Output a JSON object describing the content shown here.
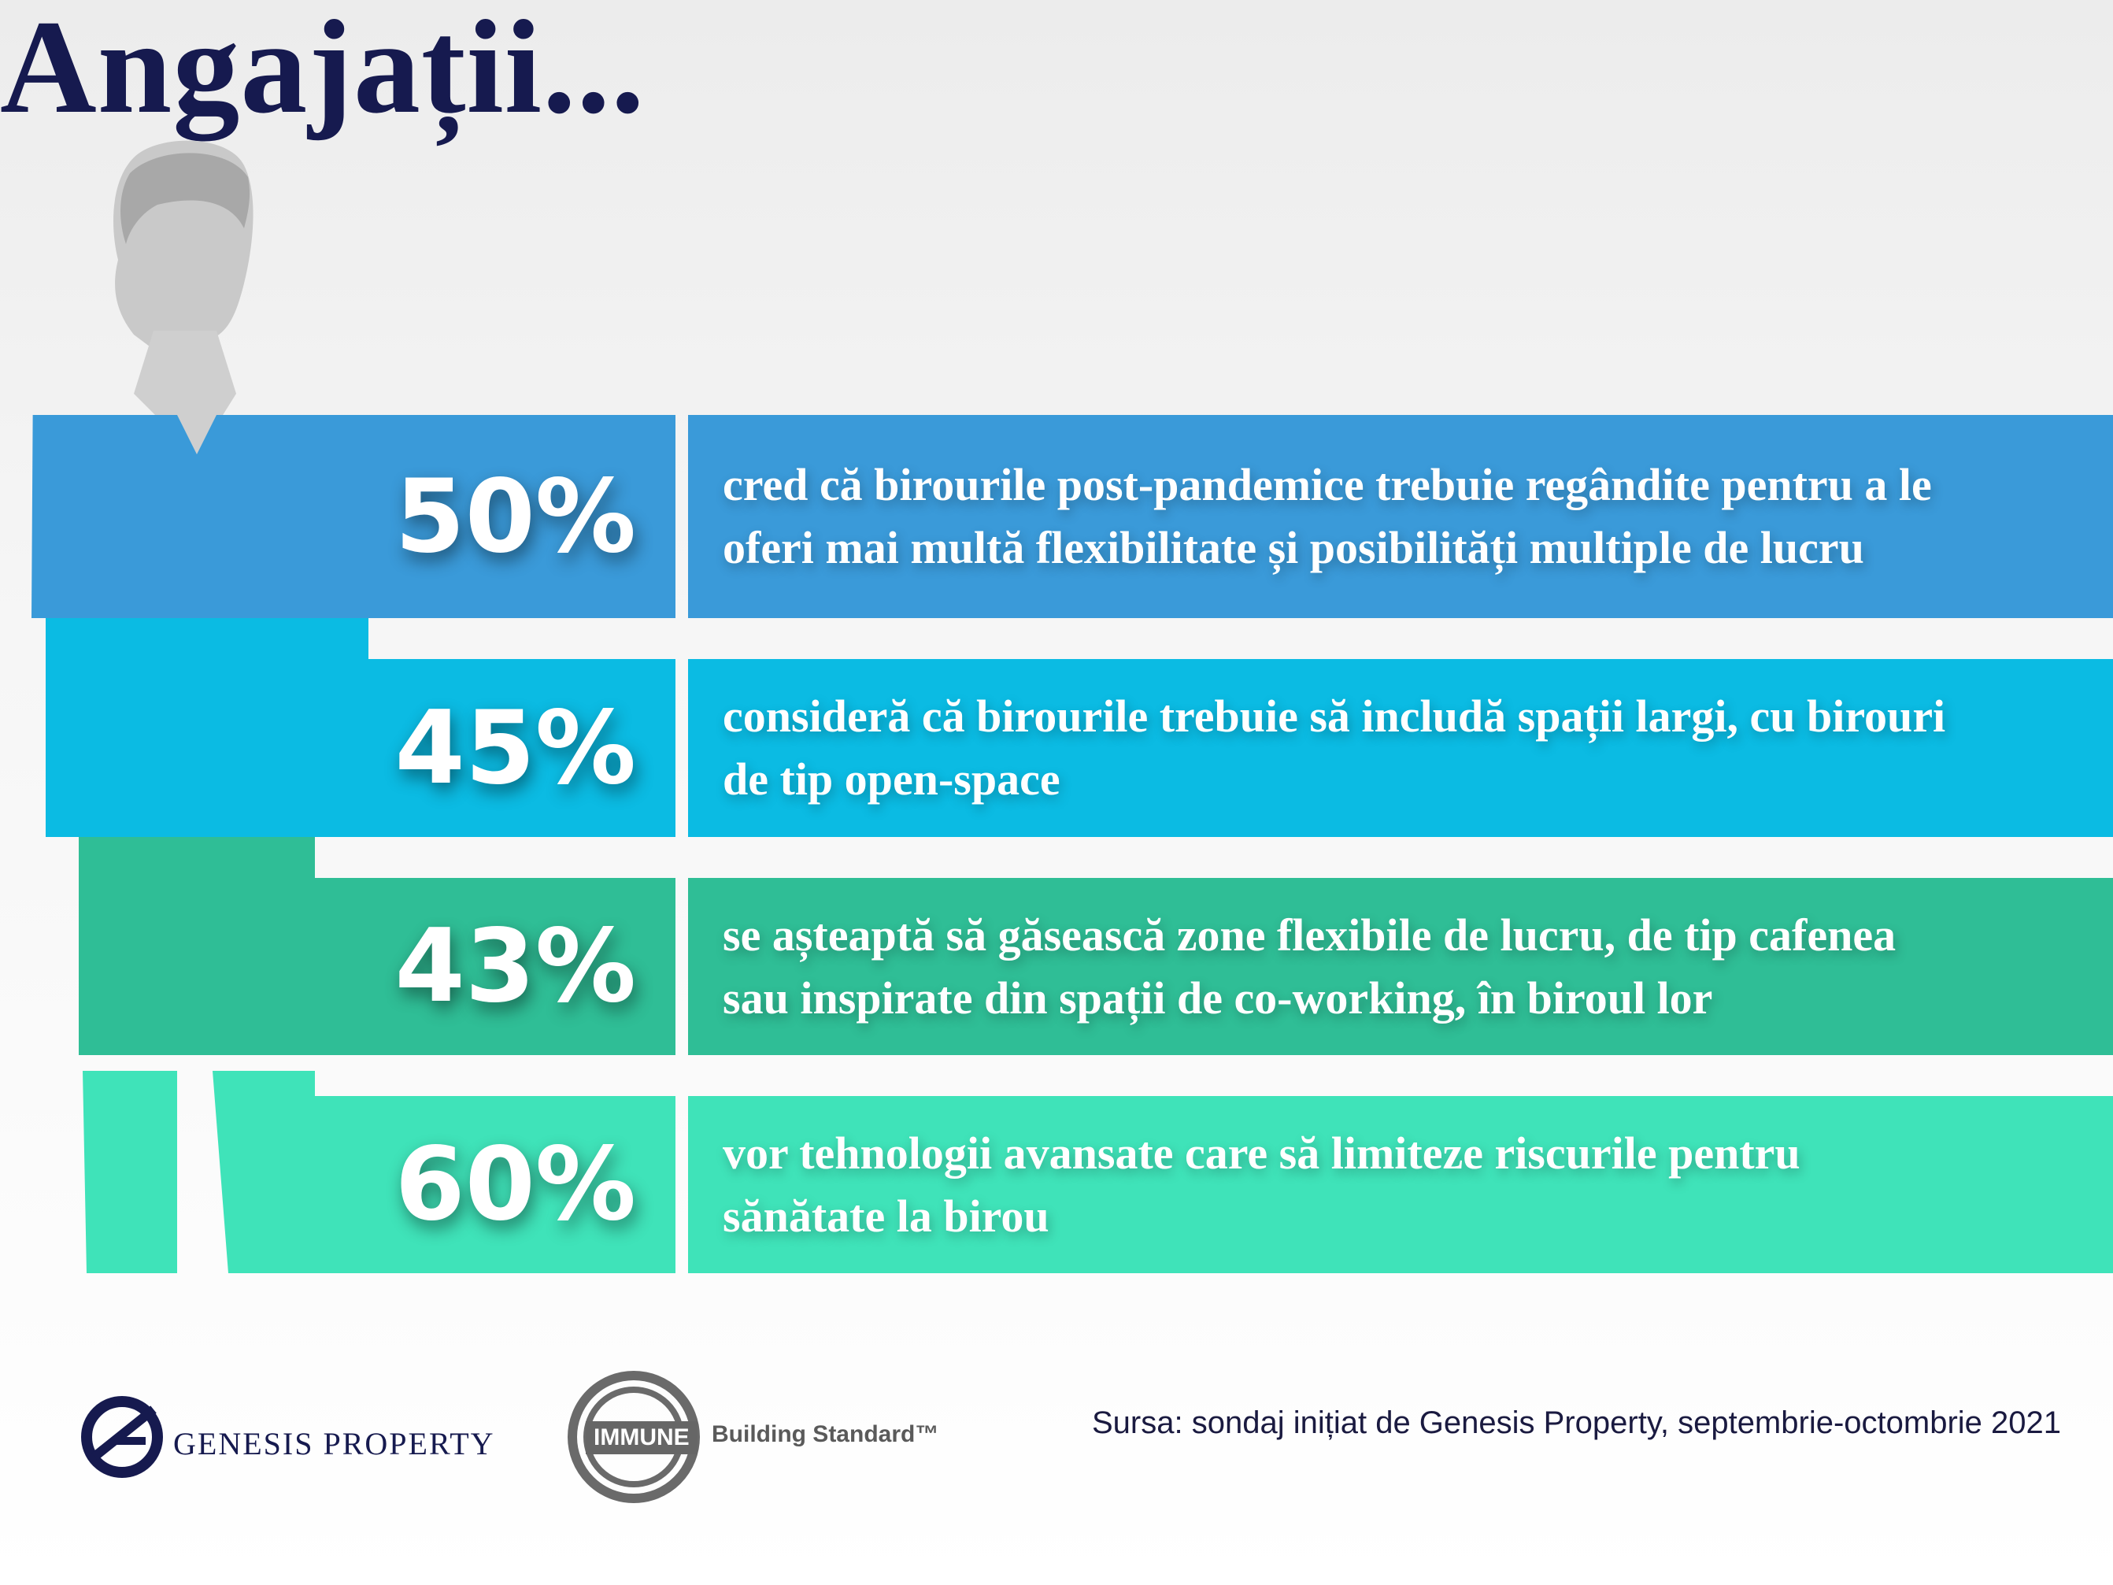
{
  "title": "Angajații...",
  "rows": [
    {
      "percent": "50%",
      "line1": "cred că birourile post-pandemice trebuie regândite pentru a le",
      "line2": "oferi mai multă flexibilitate și posibilități multiple de lucru",
      "color": "#3a9ad9"
    },
    {
      "percent": "45%",
      "line1": "consideră că birourile trebuie să includă spații largi, cu birouri",
      "line2": "de tip open-space",
      "color": "#0bbbe3"
    },
    {
      "percent": "43%",
      "line1": "se așteaptă să găsească zone flexibile de lucru, de tip cafenea",
      "line2": "sau inspirate din spații de co-working, în biroul lor",
      "color": "#2fbe96"
    },
    {
      "percent": "60%",
      "line1": "vor tehnologii avansate care să limiteze riscurile pentru",
      "line2": "sănătate la birou",
      "color": "#3fe3b9"
    }
  ],
  "footer": {
    "logo1_text": "GENESIS PROPERTY",
    "logo2_word": "IMMUNE",
    "logo2_text": "Building Standard™",
    "source": "Sursa: sondaj inițiat de Genesis Property, septembrie-octombrie 2021"
  },
  "icons": {
    "person": "person-silhouette-icon",
    "genesis": "genesis-logo-icon",
    "immune": "immune-ring-icon"
  }
}
